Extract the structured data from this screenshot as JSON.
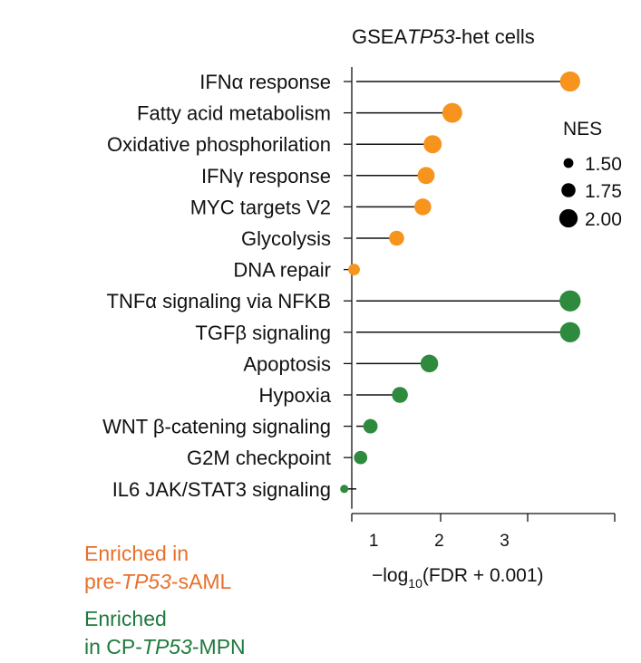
{
  "chart_data": {
    "type": "lollipop",
    "title": {
      "prefix": "GSEA",
      "italic": "TP53",
      "suffix": "-het cells"
    },
    "xlabel": {
      "prefix": "−log",
      "sub": "10",
      "suffix": "(FDR + 0.001)"
    },
    "ylabel": "",
    "xlim": [
      0,
      4
    ],
    "xticks": [
      1,
      2,
      3
    ],
    "grid": false,
    "size_legend": {
      "title": "NES",
      "position": "right",
      "entries": [
        {
          "label": "1.50",
          "value": 1.5
        },
        {
          "label": "1.75",
          "value": 1.75
        },
        {
          "label": "2.00",
          "value": 2.0
        }
      ]
    },
    "groups": [
      {
        "name": "Enriched in pre-TP53-sAML",
        "color": "#f7941d"
      },
      {
        "name": "Enriched in CP-TP53-MPN",
        "color": "#2e8b3e"
      }
    ],
    "categories": [
      "IFNα response",
      "Fatty acid metabolism",
      "Oxidative phosphorilation",
      "IFNγ response",
      "MYC targets V2",
      "Glycolysis",
      "DNA repair",
      "TNFα signaling via NFKB",
      "TGFβ signaling",
      "Apoptosis",
      "Hypoxia",
      "WNT β-catening signaling",
      "G2M checkpoint",
      "IL6 JAK/STAT3 signaling"
    ],
    "x": [
      4.0,
      2.2,
      1.9,
      1.8,
      1.75,
      1.35,
      0.7,
      4.0,
      4.0,
      1.85,
      1.4,
      0.95,
      0.8,
      0.55
    ],
    "nes": [
      2.0,
      1.98,
      1.88,
      1.82,
      1.8,
      1.7,
      1.5,
      2.05,
      2.0,
      1.85,
      1.75,
      1.66,
      1.6,
      1.3
    ],
    "group": [
      0,
      0,
      0,
      0,
      0,
      0,
      0,
      1,
      1,
      1,
      1,
      1,
      1,
      1
    ]
  },
  "notes": {
    "orange": {
      "line1": "Enriched in",
      "line2_prefix": "pre-",
      "line2_italic": "TP53",
      "line2_suffix": "-sAML"
    },
    "green": {
      "line1": "Enriched",
      "line2_prefix": "in CP-",
      "line2_italic": "TP53",
      "line2_suffix": "-MPN"
    }
  }
}
